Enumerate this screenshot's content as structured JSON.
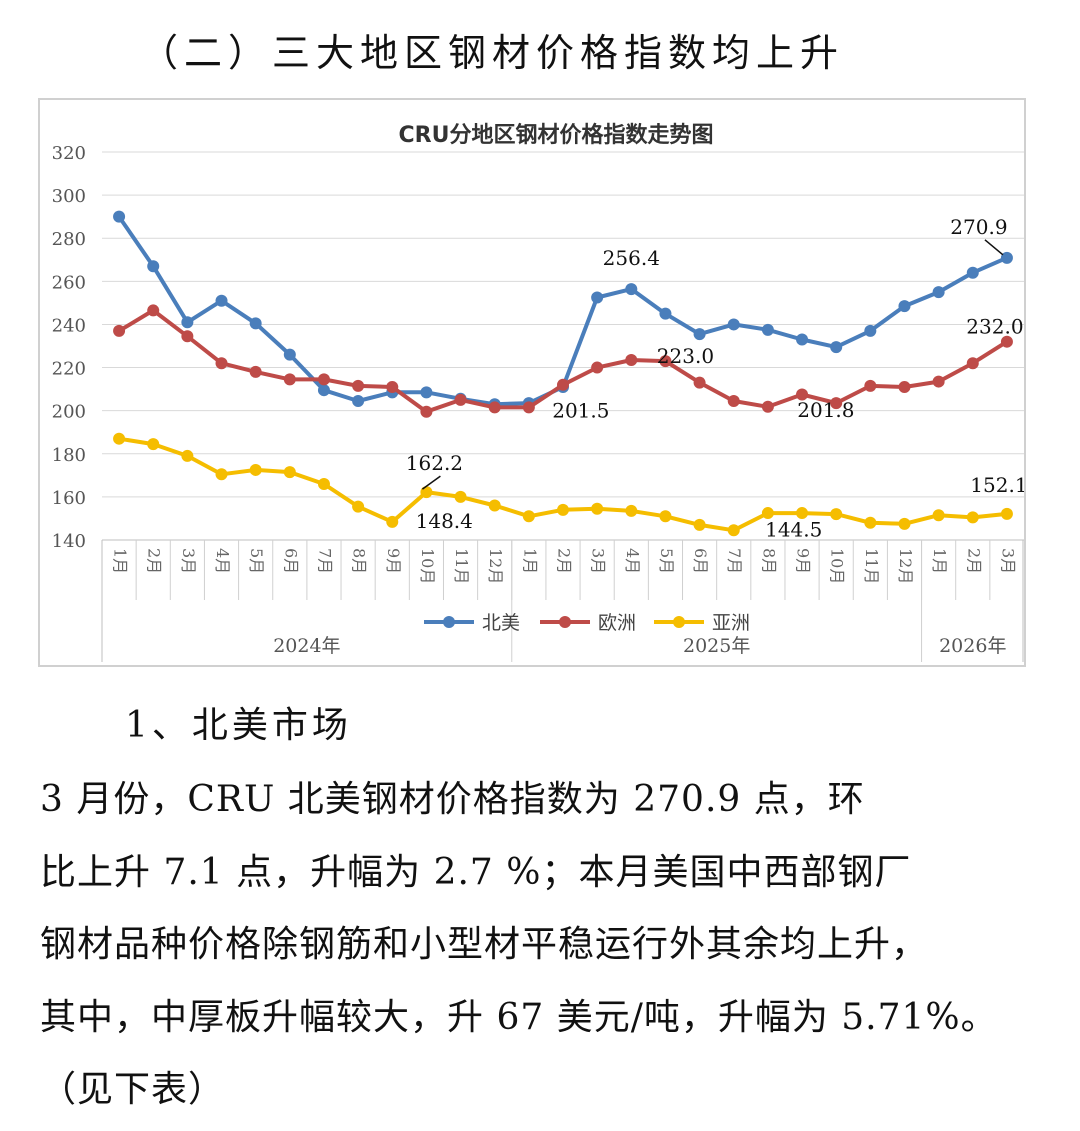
{
  "section_heading": "（二）三大地区钢材价格指数均上升",
  "chart_data": {
    "type": "line",
    "title": "CRU分地区钢材价格指数走势图",
    "xlabel": "",
    "ylabel": "",
    "ylim": [
      140,
      320
    ],
    "yticks": [
      140,
      160,
      180,
      200,
      220,
      240,
      260,
      280,
      300,
      320
    ],
    "grid": true,
    "legend": "bottom",
    "categories": [
      "1月",
      "2月",
      "3月",
      "4月",
      "5月",
      "6月",
      "7月",
      "8月",
      "9月",
      "10月",
      "11月",
      "12月",
      "1月",
      "2月",
      "3月",
      "4月",
      "5月",
      "6月",
      "7月",
      "8月",
      "9月",
      "10月",
      "11月",
      "12月",
      "1月",
      "2月",
      "3月"
    ],
    "year_groups": [
      {
        "label": "2024年",
        "count": 12
      },
      {
        "label": "2025年",
        "count": 12
      },
      {
        "label": "2026年",
        "count": 3
      }
    ],
    "series": [
      {
        "name": "北美",
        "color": "#4a7ebb",
        "values": [
          290,
          267,
          241,
          251,
          240.5,
          226,
          209.5,
          204.5,
          208.5,
          208.5,
          205.5,
          203,
          203.5,
          211,
          252.5,
          256.4,
          245,
          235.5,
          240,
          237.5,
          233,
          229.5,
          237,
          248.5,
          255,
          264,
          270.9
        ]
      },
      {
        "name": "欧洲",
        "color": "#be4b48",
        "values": [
          237,
          246.5,
          234.5,
          222,
          218,
          214.5,
          214.5,
          211.5,
          211,
          199.5,
          205,
          201.5,
          201.5,
          212,
          220,
          223.5,
          223,
          213,
          204.5,
          201.8,
          207.5,
          203.5,
          211.5,
          211,
          213.5,
          222,
          232.0
        ]
      },
      {
        "name": "亚洲",
        "color": "#f5bd00",
        "values": [
          187,
          184.5,
          179,
          170.5,
          172.5,
          171.5,
          166,
          155.5,
          148.4,
          162.2,
          160,
          156,
          151,
          154,
          154.5,
          153.5,
          151,
          147,
          144.5,
          152.5,
          152.5,
          152,
          148,
          147.5,
          151.5,
          150.5,
          152.1
        ]
      }
    ],
    "annotations": [
      {
        "text": "270.9",
        "series": 0,
        "index": 26
      },
      {
        "text": "256.4",
        "series": 0,
        "index": 15
      },
      {
        "text": "232.0",
        "series": 1,
        "index": 26
      },
      {
        "text": "223.0",
        "series": 1,
        "index": 16
      },
      {
        "text": "201.5",
        "series": 1,
        "index": 12
      },
      {
        "text": "201.8",
        "series": 1,
        "index": 19
      },
      {
        "text": "162.2",
        "series": 2,
        "index": 9
      },
      {
        "text": "148.4",
        "series": 2,
        "index": 8
      },
      {
        "text": "144.5",
        "series": 2,
        "index": 18
      },
      {
        "text": "152.1",
        "series": 2,
        "index": 26
      }
    ]
  },
  "sub_heading": "1、北美市场",
  "body_lines": [
    "3 月份，CRU 北美钢材价格指数为 270.9 点，环",
    "比上升 7.1 点，升幅为 2.7 %；本月美国中西部钢厂",
    "钢材品种价格除钢筋和小型材平稳运行外其余均上升，",
    "其中，中厚板升幅较大，升 67 美元/吨，升幅为 5.71%。",
    "（见下表）"
  ]
}
